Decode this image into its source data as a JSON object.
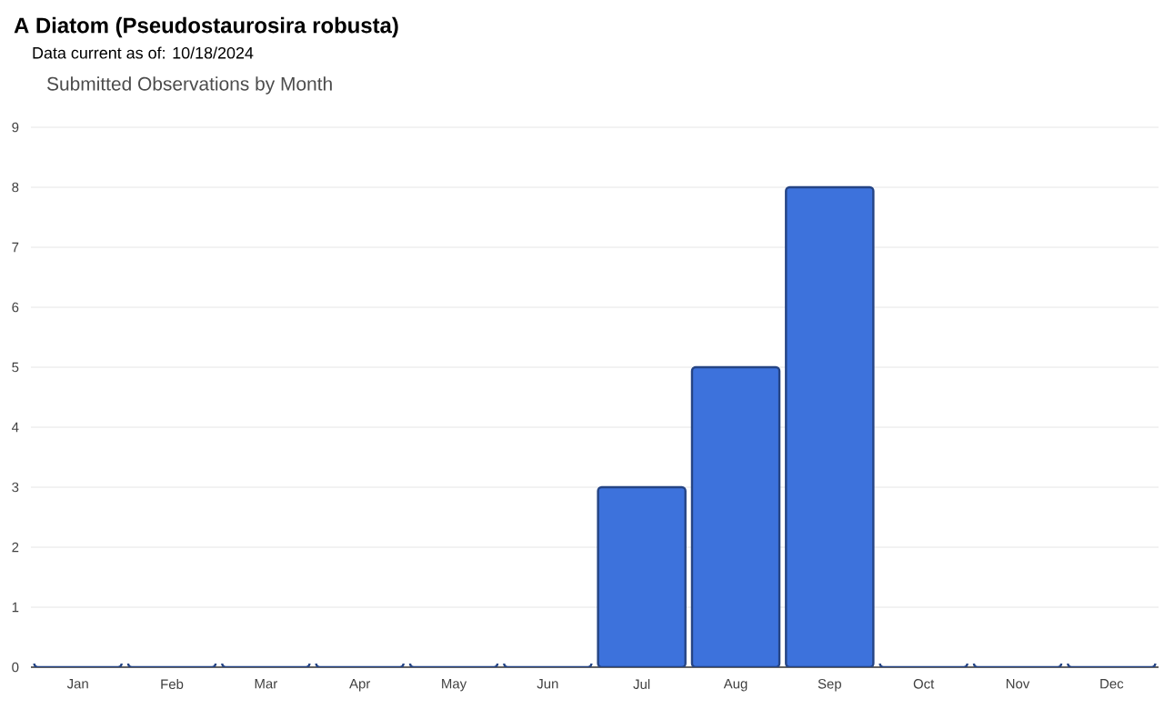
{
  "chart_data": {
    "type": "bar",
    "title": "A Diatom   (Pseudostaurosira robusta)",
    "subtitle": "Data current as of: 10/18/2024",
    "annotations": [
      "Submitted Observations by Month"
    ],
    "categories": [
      "Jan",
      "Feb",
      "Mar",
      "Apr",
      "May",
      "Jun",
      "Jul",
      "Aug",
      "Sep",
      "Oct",
      "Nov",
      "Dec"
    ],
    "values": [
      0,
      0,
      0,
      0,
      0,
      0,
      3,
      5,
      8,
      0,
      0,
      0
    ],
    "color": "#3d72dc",
    "ylim": [
      0,
      9
    ],
    "yticks": [
      0,
      1,
      2,
      3,
      4,
      5,
      6,
      7,
      8,
      9
    ],
    "grid": "y"
  }
}
